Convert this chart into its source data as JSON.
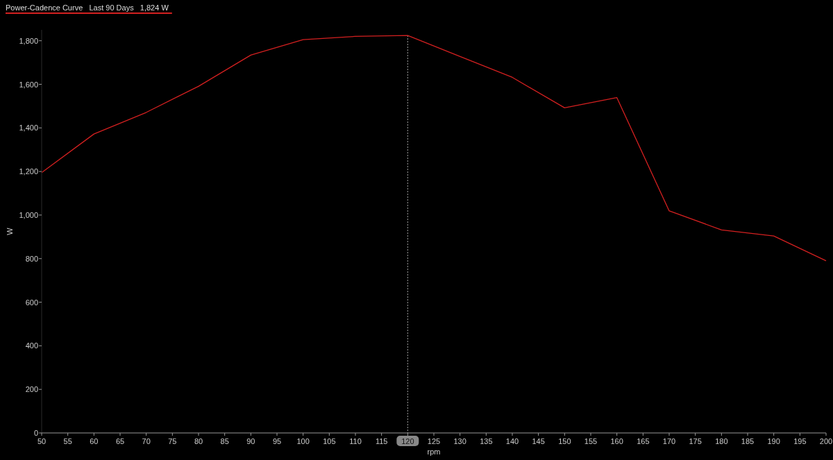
{
  "chart_data": {
    "type": "line",
    "title": "Power-Cadence Curve",
    "subtitle": "Last 90 Days",
    "annotations": [
      "1,824 W"
    ],
    "xlabel": "rpm",
    "ylabel": "W",
    "x": [
      50,
      60,
      70,
      80,
      90,
      100,
      110,
      120,
      130,
      140,
      150,
      160,
      170,
      180,
      190,
      200
    ],
    "series": [
      {
        "color": "#d42020",
        "values": [
          1195,
          1372,
          1471,
          1591,
          1734,
          1805,
          1820,
          1824,
          1728,
          1632,
          1492,
          1539,
          1019,
          932,
          904,
          790
        ]
      }
    ],
    "xlim": [
      50,
      200
    ],
    "xticks": [
      50,
      55,
      60,
      65,
      70,
      75,
      80,
      85,
      90,
      95,
      100,
      105,
      110,
      115,
      120,
      125,
      130,
      135,
      140,
      145,
      150,
      155,
      160,
      165,
      170,
      175,
      180,
      185,
      190,
      195,
      200
    ],
    "ylim": [
      0,
      1850
    ],
    "yticks": [
      0,
      200,
      400,
      600,
      800,
      {
        "value": 1000,
        "label": "1,000"
      },
      {
        "value": 1200,
        "label": "1,200"
      },
      {
        "value": 1400,
        "label": "1,400"
      },
      {
        "value": 1600,
        "label": "1,600"
      },
      {
        "value": 1800,
        "label": "1,800"
      }
    ],
    "ref_lines": [
      {
        "axis": "x",
        "value": 120,
        "color": "#aaaaaa",
        "line_style": "dotted"
      }
    ],
    "grid": false,
    "marker": "none",
    "line_style": "solid"
  }
}
